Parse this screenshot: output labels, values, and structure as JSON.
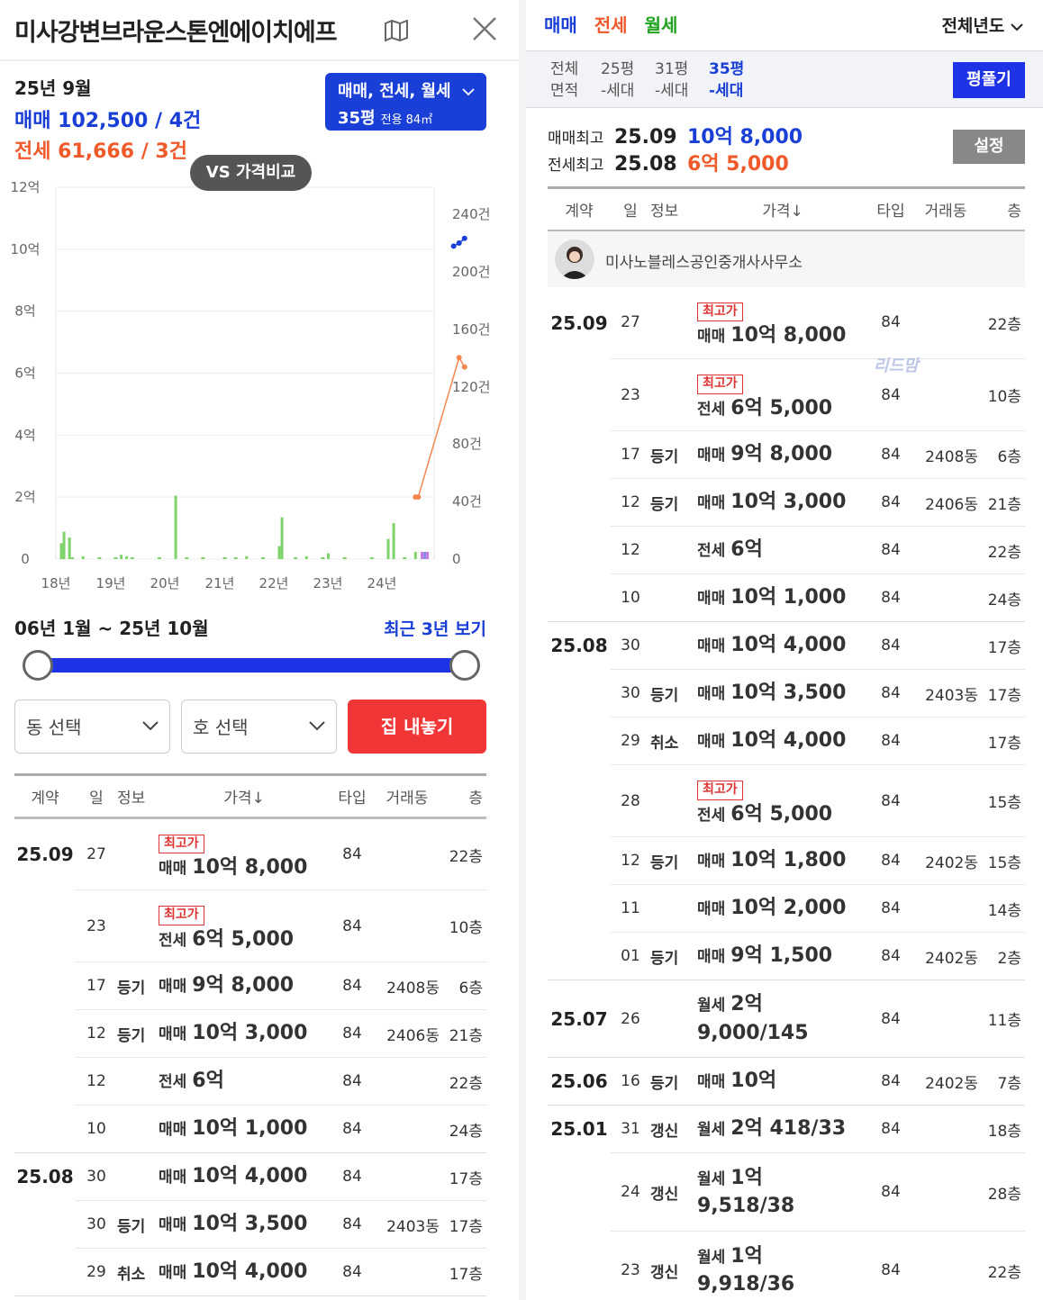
{
  "header": {
    "title": "미사강변브라운스톤엔에이치에프"
  },
  "summary": {
    "year_month": "25년 9월",
    "sale_line": "매매 102,500 / 4건",
    "jeonse_line": "전세 61,666 / 3건"
  },
  "filter": {
    "types": "매매, 전세, 월세",
    "size": "35평",
    "area": "전용 84㎡"
  },
  "vs_button": "VS 가격비교",
  "chart_data": {
    "type": "bar",
    "left_axis_ticks": [
      "12억",
      "10억",
      "8억",
      "6억",
      "4억",
      "2억",
      "0"
    ],
    "right_axis_ticks": [
      "240건",
      "200건",
      "160건",
      "120건",
      "80건",
      "40건",
      "0"
    ],
    "x_ticks": [
      "18년",
      "19년",
      "20년",
      "21년",
      "22년",
      "23년",
      "24년"
    ],
    "volume_bars": [
      {
        "x": 2018.1,
        "count": 11
      },
      {
        "x": 2018.15,
        "count": 19
      },
      {
        "x": 2018.25,
        "count": 15
      },
      {
        "x": 2018.5,
        "count": 2
      },
      {
        "x": 2019.2,
        "count": 3
      },
      {
        "x": 2019.3,
        "count": 2
      },
      {
        "x": 2020.2,
        "count": 44
      },
      {
        "x": 2021.5,
        "count": 2
      },
      {
        "x": 2022.1,
        "count": 9
      },
      {
        "x": 2022.15,
        "count": 29
      },
      {
        "x": 2022.6,
        "count": 2
      },
      {
        "x": 2023.0,
        "count": 4
      },
      {
        "x": 2024.1,
        "count": 14
      },
      {
        "x": 2024.2,
        "count": 25
      },
      {
        "x": 2024.6,
        "count": 5
      }
    ],
    "sale_price_line": [
      {
        "x": 2025.3,
        "price_eok": 10.1
      },
      {
        "x": 2025.4,
        "price_eok": 10.2
      },
      {
        "x": 2025.5,
        "price_eok": 10.35
      }
    ],
    "jeonse_price_line": [
      {
        "x": 2024.6,
        "price_eok": 2.0
      },
      {
        "x": 2024.65,
        "price_eok": 2.0
      },
      {
        "x": 2025.4,
        "price_eok": 6.5
      },
      {
        "x": 2025.5,
        "price_eok": 6.2
      }
    ],
    "colors": {
      "sale": "#1a3fd6",
      "jeonse": "#f5874f",
      "volume": "#7ed36b"
    }
  },
  "range": {
    "label": "06년 1월 ~ 25년 10월",
    "recent_link": "최근 3년 보기"
  },
  "selectors": {
    "dong": "동 선택",
    "ho": "호 선택",
    "sell_button": "집 내놓기"
  },
  "table_headers": [
    "계약",
    "일",
    "정보",
    "가격↓",
    "타입",
    "거래동",
    "층"
  ],
  "left_rows": [
    {
      "month": "25.09",
      "day": "27",
      "info": "",
      "badge": "최고가",
      "kind": "매매",
      "price": "10억 8,000",
      "type": "84",
      "dong": "",
      "floor": "22층",
      "cls": "sale"
    },
    {
      "month": "",
      "day": "23",
      "info": "",
      "badge": "최고가",
      "kind": "전세",
      "price": "6억 5,000",
      "type": "84",
      "dong": "",
      "floor": "10층",
      "cls": "jeonse"
    },
    {
      "month": "",
      "day": "17",
      "info": "등기",
      "badge": "",
      "kind": "매매",
      "price": "9억 8,000",
      "type": "84",
      "dong": "2408동",
      "floor": "6층",
      "cls": "sale"
    },
    {
      "month": "",
      "day": "12",
      "info": "등기",
      "badge": "",
      "kind": "매매",
      "price": "10억 3,000",
      "type": "84",
      "dong": "2406동",
      "floor": "21층",
      "cls": "sale"
    },
    {
      "month": "",
      "day": "12",
      "info": "",
      "badge": "",
      "kind": "전세",
      "price": "6억",
      "type": "84",
      "dong": "",
      "floor": "22층",
      "cls": "jeonse"
    },
    {
      "month": "",
      "day": "10",
      "info": "",
      "badge": "",
      "kind": "매매",
      "price": "10억 1,000",
      "type": "84",
      "dong": "",
      "floor": "24층",
      "cls": "sale"
    },
    {
      "month": "25.08",
      "day": "30",
      "info": "",
      "badge": "",
      "kind": "매매",
      "price": "10억 4,000",
      "type": "84",
      "dong": "",
      "floor": "17층",
      "cls": "sale"
    },
    {
      "month": "",
      "day": "30",
      "info": "등기",
      "badge": "",
      "kind": "매매",
      "price": "10억 3,500",
      "type": "84",
      "dong": "2403동",
      "floor": "17층",
      "cls": "sale"
    },
    {
      "month": "",
      "day": "29",
      "info": "취소",
      "badge": "",
      "kind": "매매",
      "price": "10억 4,000",
      "type": "84",
      "dong": "",
      "floor": "17층",
      "cls": "gray"
    }
  ],
  "right_panel": {
    "tabs": [
      "매매",
      "전세",
      "월세"
    ],
    "year_select": "전체년도",
    "areas": [
      {
        "top": "전체",
        "bottom": "면적"
      },
      {
        "top": "25평",
        "bottom": "-세대"
      },
      {
        "top": "31평",
        "bottom": "-세대"
      },
      {
        "top": "35평",
        "bottom": "-세대"
      }
    ],
    "pyeong_button": "평풀기",
    "max_sale_label": "매매최고",
    "max_sale_date": "25.09",
    "max_sale_price": "10억 8,000",
    "max_jeonse_label": "전세최고",
    "max_jeonse_date": "25.08",
    "max_jeonse_price": "6억 5,000",
    "settings_button": "설정",
    "agent_name": "미사노블레스공인중개사사무소",
    "watermark": "리드맘"
  },
  "right_rows": [
    {
      "month": "25.09",
      "day": "27",
      "info": "",
      "badge": "최고가",
      "kind": "매매",
      "price": "10억 8,000",
      "type": "84",
      "dong": "",
      "floor": "22층",
      "cls": "sale",
      "h": 80
    },
    {
      "month": "",
      "day": "23",
      "info": "",
      "badge": "최고가",
      "kind": "전세",
      "price": "6억 5,000",
      "type": "84",
      "dong": "",
      "floor": "10층",
      "cls": "jeonse",
      "h": 80
    },
    {
      "month": "",
      "day": "17",
      "info": "등기",
      "badge": "",
      "kind": "매매",
      "price": "9억 8,000",
      "type": "84",
      "dong": "2408동",
      "floor": "6층",
      "cls": "sale",
      "h": 53
    },
    {
      "month": "",
      "day": "12",
      "info": "등기",
      "badge": "",
      "kind": "매매",
      "price": "10억 3,000",
      "type": "84",
      "dong": "2406동",
      "floor": "21층",
      "cls": "sale",
      "h": 53
    },
    {
      "month": "",
      "day": "12",
      "info": "",
      "badge": "",
      "kind": "전세",
      "price": "6억",
      "type": "84",
      "dong": "",
      "floor": "22층",
      "cls": "jeonse",
      "h": 53
    },
    {
      "month": "",
      "day": "10",
      "info": "",
      "badge": "",
      "kind": "매매",
      "price": "10억 1,000",
      "type": "84",
      "dong": "",
      "floor": "24층",
      "cls": "sale",
      "h": 53
    },
    {
      "month": "25.08",
      "day": "30",
      "info": "",
      "badge": "",
      "kind": "매매",
      "price": "10억 4,000",
      "type": "84",
      "dong": "",
      "floor": "17층",
      "cls": "sale",
      "h": 53
    },
    {
      "month": "",
      "day": "30",
      "info": "등기",
      "badge": "",
      "kind": "매매",
      "price": "10억 3,500",
      "type": "84",
      "dong": "2403동",
      "floor": "17층",
      "cls": "sale",
      "h": 53
    },
    {
      "month": "",
      "day": "29",
      "info": "취소",
      "badge": "",
      "kind": "매매",
      "price": "10억 4,000",
      "type": "84",
      "dong": "",
      "floor": "17층",
      "cls": "gray",
      "h": 53
    },
    {
      "month": "",
      "day": "28",
      "info": "",
      "badge": "최고가",
      "kind": "전세",
      "price": "6억 5,000",
      "type": "84",
      "dong": "",
      "floor": "15층",
      "cls": "jeonse",
      "h": 80
    },
    {
      "month": "",
      "day": "12",
      "info": "등기",
      "badge": "",
      "kind": "매매",
      "price": "10억 1,800",
      "type": "84",
      "dong": "2402동",
      "floor": "15층",
      "cls": "sale",
      "h": 53
    },
    {
      "month": "",
      "day": "11",
      "info": "",
      "badge": "",
      "kind": "매매",
      "price": "10억 2,000",
      "type": "84",
      "dong": "",
      "floor": "14층",
      "cls": "sale",
      "h": 53
    },
    {
      "month": "",
      "day": "01",
      "info": "등기",
      "badge": "",
      "kind": "매매",
      "price": "9억 1,500",
      "type": "84",
      "dong": "2402동",
      "floor": "2층",
      "cls": "sale",
      "h": 53
    },
    {
      "month": "25.07",
      "day": "26",
      "info": "",
      "badge": "",
      "kind": "월세",
      "price": "2억",
      "price2": "9,000/145",
      "type": "84",
      "dong": "",
      "floor": "11층",
      "cls": "wolse",
      "h": 86
    },
    {
      "month": "25.06",
      "day": "16",
      "info": "등기",
      "badge": "",
      "kind": "매매",
      "price": "10억",
      "type": "84",
      "dong": "2402동",
      "floor": "7층",
      "cls": "sale",
      "h": 53
    },
    {
      "month": "25.01",
      "day": "31",
      "info": "갱신",
      "badge": "",
      "kind": "월세",
      "price": "2억 418/33",
      "type": "84",
      "dong": "",
      "floor": "18층",
      "cls": "wolse",
      "h": 53
    },
    {
      "month": "",
      "day": "24",
      "info": "갱신",
      "badge": "",
      "kind": "월세",
      "price": "1억",
      "price2": "9,518/38",
      "type": "84",
      "dong": "",
      "floor": "28층",
      "cls": "wolse",
      "h": 87
    },
    {
      "month": "",
      "day": "23",
      "info": "갱신",
      "badge": "",
      "kind": "월세",
      "price": "1억",
      "price2": "9,918/36",
      "type": "84",
      "dong": "",
      "floor": "22층",
      "cls": "wolse",
      "h": 87
    }
  ]
}
